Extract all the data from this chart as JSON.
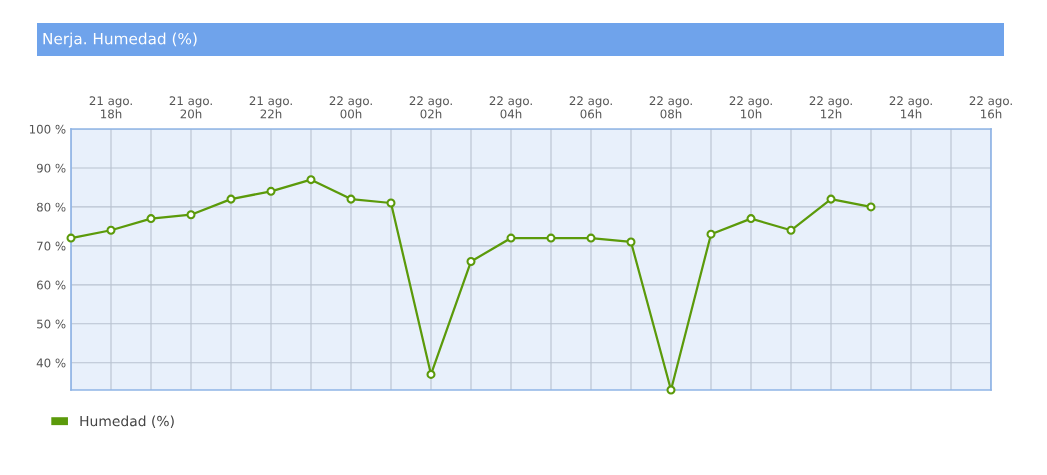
{
  "chart_data": {
    "type": "line",
    "title": "Nerja. Humedad (%)",
    "categories": [
      null,
      "21 ago.\n18h",
      null,
      "21 ago.\n20h",
      null,
      "21 ago.\n22h",
      null,
      "22 ago.\n00h",
      null,
      "22 ago.\n02h",
      null,
      "22 ago.\n04h",
      null,
      "22 ago.\n06h",
      null,
      "22 ago.\n08h",
      null,
      "22 ago.\n10h",
      null,
      "22 ago.\n12h",
      null,
      "22 ago.\n14h",
      null,
      "22 ago.\n16h"
    ],
    "series": [
      {
        "name": "Humedad (%)",
        "color": "#5b9a0a",
        "values": [
          72,
          74,
          77,
          78,
          82,
          84,
          87,
          82,
          81,
          37,
          66,
          72,
          72,
          72,
          71,
          33,
          73,
          77,
          74,
          82,
          80,
          null,
          null,
          null
        ]
      }
    ],
    "ylim": [
      33,
      100
    ],
    "yticks": [
      {
        "value": 40,
        "label": "40 %"
      },
      {
        "value": 50,
        "label": "50 %"
      },
      {
        "value": 60,
        "label": "60 %"
      },
      {
        "value": 70,
        "label": "70 %"
      },
      {
        "value": 80,
        "label": "80 %"
      },
      {
        "value": 90,
        "label": "90 %"
      },
      {
        "value": 100,
        "label": "100 %"
      }
    ],
    "grid": true,
    "legend": "bottom left",
    "marker": "circle",
    "line_style": "solid"
  }
}
